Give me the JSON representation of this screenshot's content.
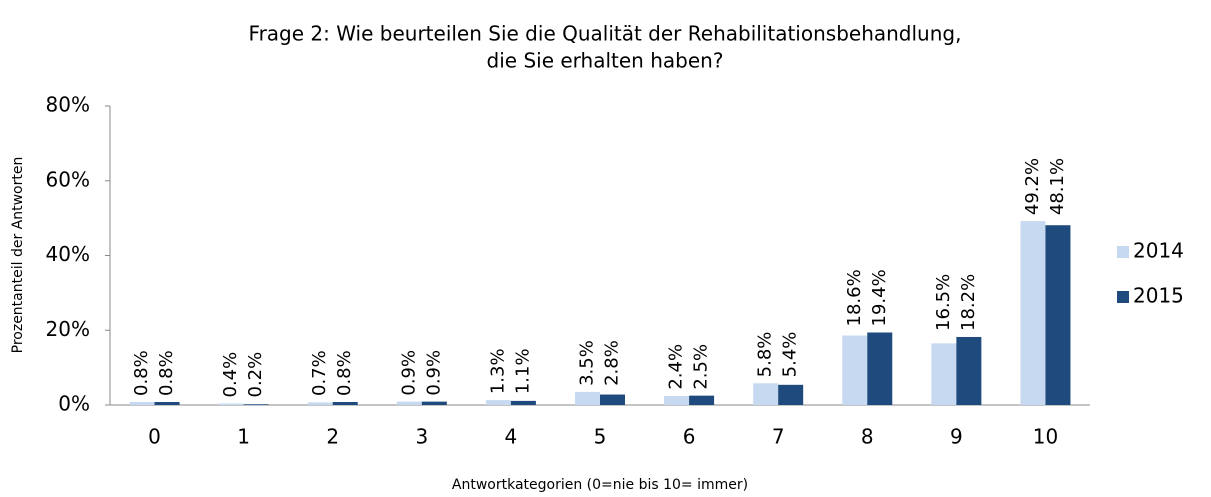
{
  "chart_data": {
    "type": "bar",
    "title": [
      "Frage 2: Wie beurteilen Sie die Qualität der Rehabilitationsbehandlung,",
      "die Sie erhalten haben?"
    ],
    "x_label": "Antwortkategorien (0=nie bis 10= immer)",
    "y_label": "Prozentanteil der Antworten",
    "categories": [
      "0",
      "1",
      "2",
      "3",
      "4",
      "5",
      "6",
      "7",
      "8",
      "9",
      "10"
    ],
    "series": [
      {
        "name": "2014",
        "color": "#c6d9f1",
        "values": [
          0.8,
          0.4,
          0.7,
          0.9,
          1.3,
          3.5,
          2.4,
          5.8,
          18.6,
          16.5,
          49.2
        ],
        "value_labels": [
          "0.8%",
          "0.4%",
          "0.7%",
          "0.9%",
          "1.3%",
          "3.5%",
          "2.4%",
          "5.8%",
          "18.6%",
          "16.5%",
          "49.2%"
        ]
      },
      {
        "name": "2015",
        "color": "#1f4a7e",
        "values": [
          0.8,
          0.2,
          0.8,
          0.9,
          1.1,
          2.8,
          2.5,
          5.4,
          19.4,
          18.2,
          48.1
        ],
        "value_labels": [
          "0.8%",
          "0.2%",
          "0.8%",
          "0.9%",
          "1.1%",
          "2.8%",
          "2.5%",
          "5.4%",
          "19.4%",
          "18.2%",
          "48.1%"
        ]
      }
    ],
    "ylim": [
      0,
      80
    ],
    "yticks": [
      {
        "value": 0,
        "label": "0%"
      },
      {
        "value": 20,
        "label": "20%"
      },
      {
        "value": 40,
        "label": "40%"
      },
      {
        "value": 60,
        "label": "60%"
      },
      {
        "value": 80,
        "label": "80%"
      }
    ],
    "grid": false,
    "legend": "right"
  }
}
